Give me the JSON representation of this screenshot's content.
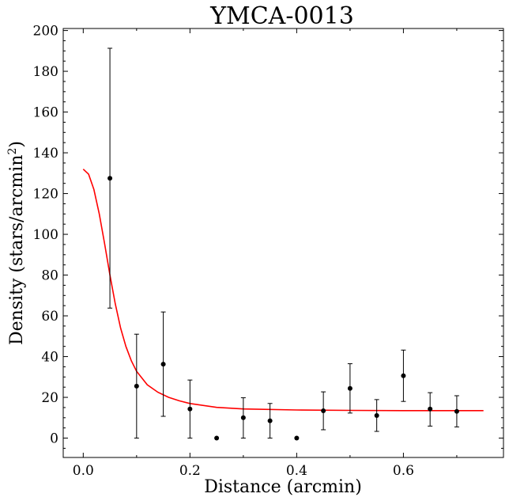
{
  "chart_data": {
    "type": "scatter",
    "title": "YMCA-0013",
    "xlabel": "Distance (arcmin)",
    "ylabel_main": "Density (stars/arcmin",
    "ylabel_sup": "2",
    "ylabel_close": ")",
    "xlim": [
      -0.0375,
      0.7875
    ],
    "ylim": [
      -9.5,
      201
    ],
    "x_ticks": [
      0.0,
      0.2,
      0.4,
      0.6
    ],
    "x_tick_labels": [
      "0.0",
      "0.2",
      "0.4",
      "0.6"
    ],
    "y_ticks": [
      0,
      20,
      40,
      60,
      80,
      100,
      120,
      140,
      160,
      180,
      200
    ],
    "y_tick_labels": [
      "0",
      "20",
      "40",
      "60",
      "80",
      "100",
      "120",
      "140",
      "160",
      "180",
      "200"
    ],
    "grid": false,
    "series": [
      {
        "kind": "points_with_errorbars",
        "color": "#000000",
        "x": [
          0.05,
          0.1,
          0.15,
          0.2,
          0.25,
          0.3,
          0.35,
          0.4,
          0.45,
          0.5,
          0.55,
          0.6,
          0.65,
          0.7
        ],
        "y": [
          127.5,
          25.5,
          36.3,
          14.3,
          0,
          10.0,
          8.5,
          0,
          13.4,
          24.4,
          11.1,
          30.6,
          14.3,
          13.1
        ],
        "yerr_low": [
          63.8,
          0,
          10.7,
          0,
          null,
          0,
          0,
          null,
          4.1,
          12.3,
          3.3,
          18.0,
          5.9,
          5.5
        ],
        "yerr_high": [
          191.3,
          51.0,
          61.9,
          28.5,
          null,
          19.8,
          17.0,
          null,
          22.7,
          36.5,
          18.9,
          43.2,
          22.3,
          20.8
        ]
      },
      {
        "kind": "fit_line",
        "color": "#ff0000",
        "x": [
          0.0,
          0.01,
          0.02,
          0.03,
          0.04,
          0.05,
          0.06,
          0.07,
          0.08,
          0.09,
          0.1,
          0.12,
          0.14,
          0.16,
          0.18,
          0.2,
          0.25,
          0.3,
          0.4,
          0.5,
          0.6,
          0.75
        ],
        "y": [
          132.0,
          129.5,
          122.0,
          110.0,
          95.5,
          80.0,
          66.0,
          54.0,
          45.0,
          38.0,
          32.8,
          26.2,
          22.5,
          20.0,
          18.3,
          17.0,
          15.1,
          14.3,
          13.8,
          13.6,
          13.5,
          13.5
        ]
      }
    ]
  }
}
